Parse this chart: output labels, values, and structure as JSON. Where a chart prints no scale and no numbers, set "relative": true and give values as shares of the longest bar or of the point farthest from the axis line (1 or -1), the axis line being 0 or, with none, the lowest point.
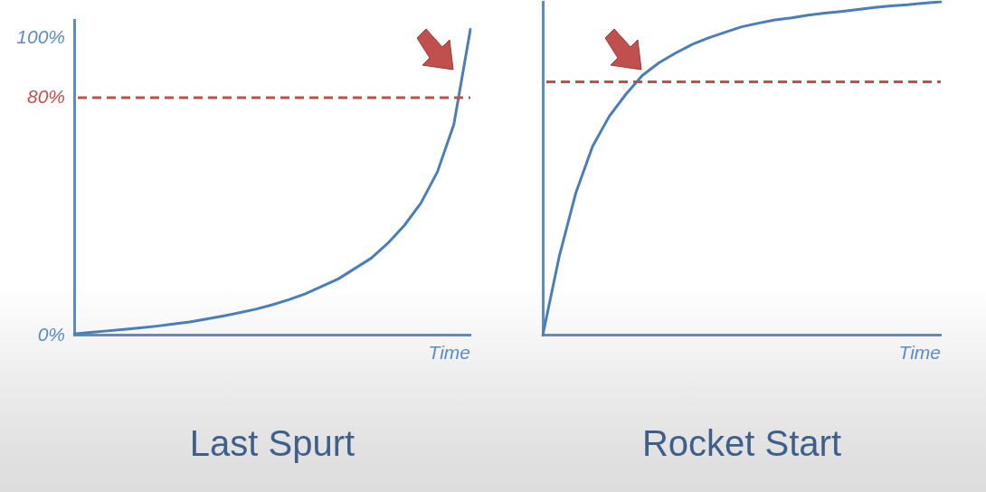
{
  "chart_data": [
    {
      "type": "line",
      "title": "Last Spurt",
      "xlabel": "Time",
      "categories": [
        null,
        null,
        null,
        null,
        null,
        null,
        null,
        null,
        null,
        null,
        null,
        null,
        null,
        null,
        null,
        null,
        null,
        null,
        null,
        null,
        null,
        null,
        null,
        null,
        null
      ],
      "series": [
        {
          "color": "#4a7ebb",
          "values": [
            0.5,
            1,
            1.5,
            2,
            2.5,
            3.1,
            3.8,
            4.5,
            5.5,
            6.5,
            7.6,
            8.8,
            10.3,
            12,
            14,
            16.5,
            19,
            22.5,
            26,
            31,
            37,
            44.5,
            55,
            71,
            103
          ]
        }
      ],
      "ylim": [
        0,
        106
      ],
      "yticks": [
        {
          "value": 0,
          "label": "0%"
        },
        {
          "value": 80,
          "label": "80%"
        },
        {
          "value": 100,
          "label": "100%"
        }
      ],
      "tick_labels": "y",
      "grid": false,
      "legend": false,
      "marker": "none",
      "ref_lines": [
        {
          "axis": "y",
          "value": 80,
          "color": "#c0504d",
          "line_style": "dashed"
        }
      ]
    },
    {
      "type": "line",
      "title": "Rocket Start",
      "xlabel": "Time",
      "categories": [
        null,
        null,
        null,
        null,
        null,
        null,
        null,
        null,
        null,
        null,
        null,
        null,
        null,
        null,
        null,
        null,
        null,
        null,
        null,
        null,
        null,
        null,
        null,
        null,
        null
      ],
      "series": [
        {
          "color": "#4a7ebb",
          "values": [
            0,
            0.238,
            0.428,
            0.566,
            0.656,
            0.722,
            0.779,
            0.817,
            0.846,
            0.872,
            0.892,
            0.909,
            0.925,
            0.936,
            0.946,
            0.952,
            0.96,
            0.966,
            0.971,
            0.977,
            0.983,
            0.988,
            0.991,
            0.996,
            1
          ]
        }
      ],
      "relative": true,
      "tick_labels": false,
      "grid": false,
      "legend": false,
      "marker": "none",
      "ref_lines": [
        {
          "axis": "y",
          "value": 0.76,
          "color": "#c0504d",
          "line_style": "dashed"
        }
      ]
    }
  ]
}
